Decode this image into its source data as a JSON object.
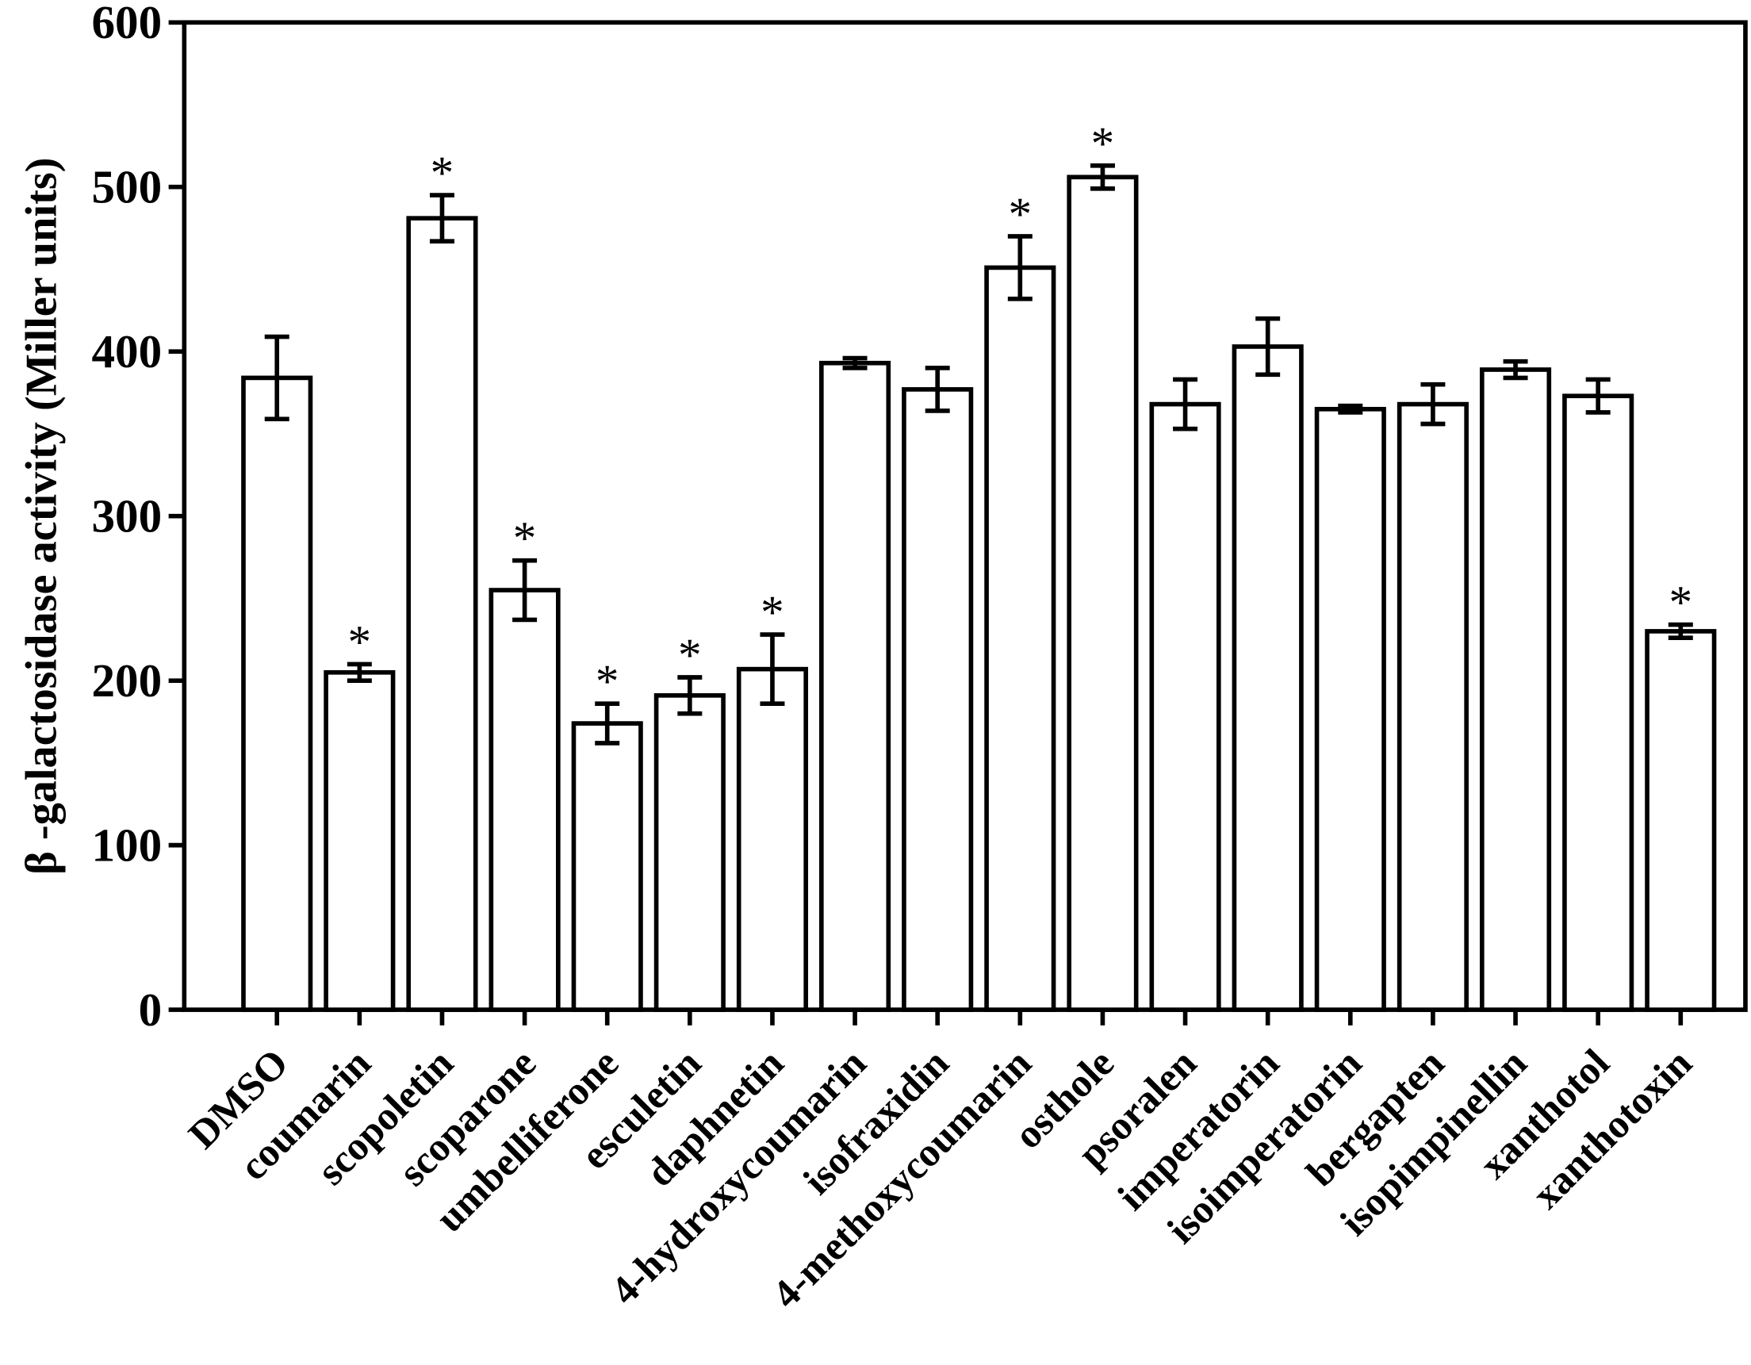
{
  "chart_data": {
    "type": "bar",
    "y_label": "β -galactosidase activity (Miller units)",
    "categories": [
      "DMSO",
      "coumarin",
      "scopoletin",
      "scoparone",
      "umbelliferone",
      "esculetin",
      "daphnetin",
      "4-hydroxycoumarin",
      "isofraxidin",
      "4-methoxycoumarin",
      "osthole",
      "psoralen",
      "imperatorin",
      "isoimperatorin",
      "bergapten",
      "isopimpinellin",
      "xanthotol",
      "xanthotoxin"
    ],
    "values": [
      384,
      205,
      481,
      255,
      174,
      191,
      207,
      393,
      377,
      451,
      506,
      368,
      403,
      365,
      368,
      389,
      373,
      230
    ],
    "errors": [
      25,
      5,
      14,
      18,
      12,
      11,
      21,
      3,
      13,
      19,
      7,
      15,
      17,
      2,
      12,
      5,
      10,
      4
    ],
    "markers": [
      null,
      "*",
      "*",
      "*",
      "*",
      "*",
      "*",
      null,
      null,
      "*",
      "*",
      null,
      null,
      null,
      null,
      null,
      null,
      "*"
    ],
    "color": "#ffffff",
    "ylim": [
      0,
      600
    ],
    "yticks": [
      0,
      100,
      200,
      300,
      400,
      500,
      600
    ]
  }
}
